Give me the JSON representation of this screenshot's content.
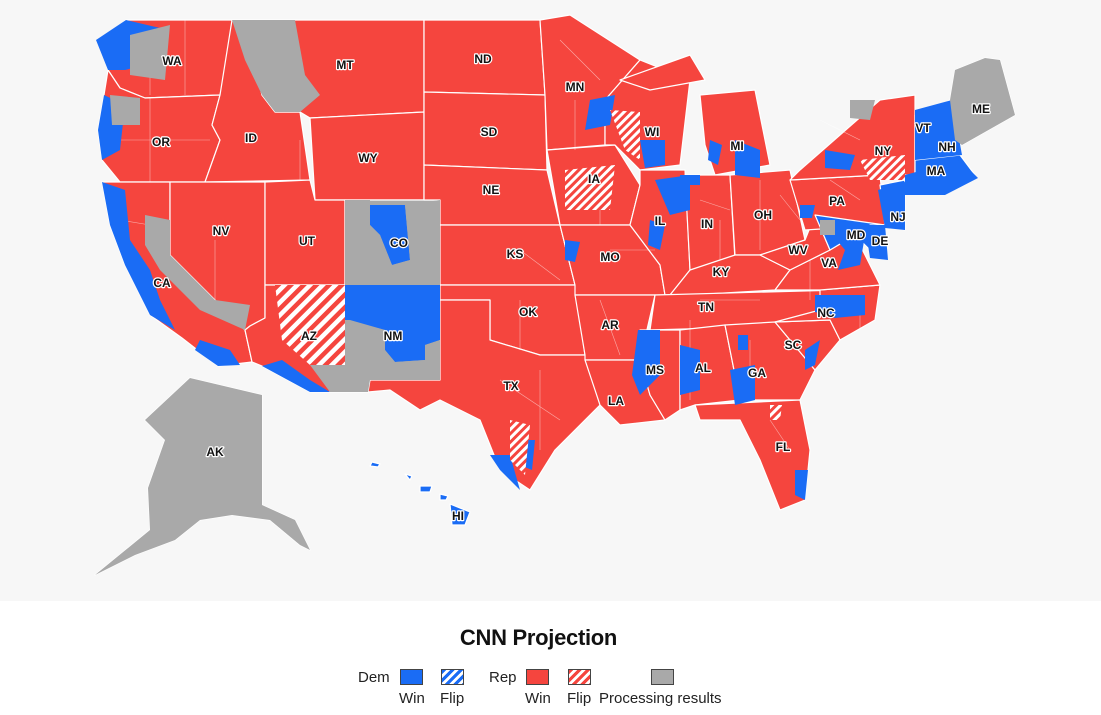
{
  "legend": {
    "title": "CNN Projection",
    "dem_label": "Dem",
    "rep_label": "Rep",
    "items": {
      "dem_win": "Win",
      "dem_flip": "Flip",
      "rep_win": "Win",
      "rep_flip": "Flip",
      "processing": "Processing results"
    }
  },
  "colors": {
    "dem": "#1a6cf5",
    "rep": "#f5453e",
    "processing": "#a9a9a9",
    "background": "#f7f7f7"
  },
  "states": [
    {
      "abbr": "WA",
      "status": "rep_win"
    },
    {
      "abbr": "OR",
      "status": "rep_win"
    },
    {
      "abbr": "CA",
      "status": "rep_win"
    },
    {
      "abbr": "ID",
      "status": "rep_win"
    },
    {
      "abbr": "NV",
      "status": "rep_win"
    },
    {
      "abbr": "MT",
      "status": "rep_win"
    },
    {
      "abbr": "WY",
      "status": "rep_win"
    },
    {
      "abbr": "UT",
      "status": "rep_win"
    },
    {
      "abbr": "AZ",
      "status": "rep_flip"
    },
    {
      "abbr": "CO",
      "status": "processing"
    },
    {
      "abbr": "NM",
      "status": "processing"
    },
    {
      "abbr": "ND",
      "status": "rep_win"
    },
    {
      "abbr": "SD",
      "status": "rep_win"
    },
    {
      "abbr": "NE",
      "status": "rep_win"
    },
    {
      "abbr": "KS",
      "status": "rep_win"
    },
    {
      "abbr": "OK",
      "status": "rep_win"
    },
    {
      "abbr": "TX",
      "status": "rep_win"
    },
    {
      "abbr": "MN",
      "status": "rep_win"
    },
    {
      "abbr": "IA",
      "status": "rep_win"
    },
    {
      "abbr": "MO",
      "status": "rep_win"
    },
    {
      "abbr": "AR",
      "status": "rep_win"
    },
    {
      "abbr": "LA",
      "status": "rep_win"
    },
    {
      "abbr": "WI",
      "status": "rep_win"
    },
    {
      "abbr": "IL",
      "status": "rep_win"
    },
    {
      "abbr": "MI",
      "status": "rep_win"
    },
    {
      "abbr": "IN",
      "status": "rep_win"
    },
    {
      "abbr": "OH",
      "status": "rep_win"
    },
    {
      "abbr": "KY",
      "status": "rep_win"
    },
    {
      "abbr": "TN",
      "status": "rep_win"
    },
    {
      "abbr": "MS",
      "status": "rep_win"
    },
    {
      "abbr": "AL",
      "status": "rep_win"
    },
    {
      "abbr": "GA",
      "status": "rep_win"
    },
    {
      "abbr": "FL",
      "status": "rep_win"
    },
    {
      "abbr": "SC",
      "status": "rep_win"
    },
    {
      "abbr": "NC",
      "status": "rep_win"
    },
    {
      "abbr": "VA",
      "status": "rep_win"
    },
    {
      "abbr": "WV",
      "status": "rep_win"
    },
    {
      "abbr": "PA",
      "status": "rep_win"
    },
    {
      "abbr": "NY",
      "status": "rep_win"
    },
    {
      "abbr": "MD",
      "status": "dem_win"
    },
    {
      "abbr": "DE",
      "status": "dem_win"
    },
    {
      "abbr": "NJ",
      "status": "dem_win"
    },
    {
      "abbr": "VT",
      "status": "dem_win"
    },
    {
      "abbr": "NH",
      "status": "dem_win"
    },
    {
      "abbr": "MA",
      "status": "dem_win"
    },
    {
      "abbr": "ME",
      "status": "processing"
    },
    {
      "abbr": "AK",
      "status": "processing"
    },
    {
      "abbr": "HI",
      "status": "dem_win"
    }
  ]
}
